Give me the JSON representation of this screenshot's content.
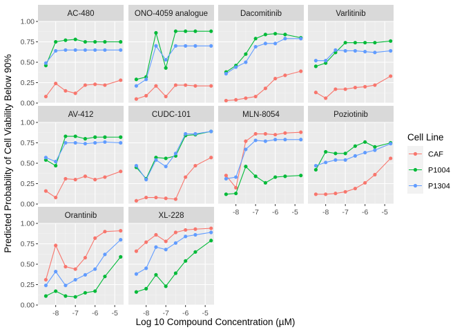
{
  "chart_data": {
    "type": "line",
    "xlabel": "Log 10 Compound Concentration (µM)",
    "ylabel": "Predicted Probability of Cell Viability Below 90%",
    "xlim": [
      -8.9,
      -4.55
    ],
    "ylim": [
      0,
      1
    ],
    "x_ticks": [
      -8,
      -7,
      -6,
      -5
    ],
    "x_tick_labels": [
      "-8",
      "-7",
      "-6",
      "-5"
    ],
    "y_ticks": [
      0,
      0.25,
      0.5,
      0.75,
      1
    ],
    "y_tick_labels": [
      "0.00",
      "0.25",
      "0.50",
      "0.75",
      "1.00"
    ],
    "x": [
      -8.5,
      -8.0,
      -7.5,
      -7.0,
      -6.5,
      -6.0,
      -5.5,
      -4.7
    ],
    "legend": {
      "title": "Cell Line",
      "position": "right",
      "entries": [
        "CAF",
        "P1004",
        "P1304"
      ]
    },
    "series_colors": {
      "CAF": "#F8766D",
      "P1004": "#00BA38",
      "P1304": "#619CFF"
    },
    "panels": [
      {
        "title": "AC-480",
        "series": [
          {
            "name": "CAF",
            "values": [
              0.08,
              0.24,
              0.15,
              0.12,
              0.22,
              0.23,
              0.22,
              0.28
            ]
          },
          {
            "name": "P1004",
            "values": [
              0.46,
              0.75,
              0.77,
              0.78,
              0.75,
              0.75,
              0.75,
              0.75
            ]
          },
          {
            "name": "P1304",
            "values": [
              0.49,
              0.64,
              0.65,
              0.65,
              0.65,
              0.65,
              0.65,
              0.65
            ]
          }
        ]
      },
      {
        "title": "ONO-4059 analogue",
        "series": [
          {
            "name": "CAF",
            "values": [
              0.05,
              0.09,
              0.21,
              0.08,
              0.22,
              0.22,
              0.21,
              0.21
            ]
          },
          {
            "name": "P1004",
            "values": [
              0.29,
              0.32,
              0.86,
              0.43,
              0.88,
              0.88,
              0.88,
              0.88
            ]
          },
          {
            "name": "P1304",
            "values": [
              0.21,
              0.29,
              0.7,
              0.53,
              0.7,
              0.7,
              0.7,
              0.7
            ]
          }
        ]
      },
      {
        "title": "Dacomitinib",
        "series": [
          {
            "name": "CAF",
            "values": [
              0.03,
              0.04,
              0.06,
              0.08,
              0.18,
              0.3,
              0.34,
              0.39
            ]
          },
          {
            "name": "P1004",
            "values": [
              0.38,
              0.46,
              0.6,
              0.79,
              0.84,
              0.85,
              0.84,
              0.8
            ]
          },
          {
            "name": "P1304",
            "values": [
              0.36,
              0.44,
              0.5,
              0.69,
              0.73,
              0.73,
              0.79,
              0.79
            ]
          }
        ]
      },
      {
        "title": "Varlitinib",
        "series": [
          {
            "name": "CAF",
            "values": [
              0.13,
              0.06,
              0.17,
              0.17,
              0.19,
              0.2,
              0.22,
              0.33
            ]
          },
          {
            "name": "P1004",
            "values": [
              0.45,
              0.49,
              0.62,
              0.74,
              0.74,
              0.74,
              0.74,
              0.76
            ]
          },
          {
            "name": "P1304",
            "values": [
              0.52,
              0.52,
              0.65,
              0.64,
              0.64,
              0.63,
              0.62,
              0.64
            ]
          }
        ]
      },
      {
        "title": "AV-412",
        "series": [
          {
            "name": "CAF",
            "values": [
              0.16,
              0.08,
              0.31,
              0.3,
              0.34,
              0.3,
              0.33,
              0.4
            ]
          },
          {
            "name": "P1004",
            "values": [
              0.54,
              0.47,
              0.83,
              0.83,
              0.8,
              0.82,
              0.82,
              0.82
            ]
          },
          {
            "name": "P1304",
            "values": [
              0.57,
              0.52,
              0.75,
              0.75,
              0.74,
              0.75,
              0.76,
              0.75
            ]
          }
        ]
      },
      {
        "title": "CUDC-101",
        "series": [
          {
            "name": "CAF",
            "values": [
              0.04,
              0.08,
              0.08,
              0.07,
              0.06,
              0.33,
              0.47,
              0.57
            ]
          },
          {
            "name": "P1004",
            "values": [
              0.45,
              0.31,
              0.57,
              0.56,
              0.59,
              0.84,
              0.85,
              0.89
            ]
          },
          {
            "name": "P1304",
            "values": [
              0.47,
              0.3,
              0.54,
              0.46,
              0.62,
              0.86,
              0.86,
              0.89
            ]
          }
        ]
      },
      {
        "title": "MLN-8054",
        "series": [
          {
            "name": "CAF",
            "values": [
              0.35,
              0.2,
              0.77,
              0.86,
              0.86,
              0.85,
              0.87,
              0.88
            ]
          },
          {
            "name": "P1004",
            "values": [
              0.12,
              0.13,
              0.46,
              0.34,
              0.26,
              0.33,
              0.34,
              0.35
            ]
          },
          {
            "name": "P1304",
            "values": [
              0.31,
              0.33,
              0.67,
              0.78,
              0.77,
              0.79,
              0.79,
              0.79
            ]
          }
        ]
      },
      {
        "title": "Poziotinib",
        "series": [
          {
            "name": "CAF",
            "values": [
              0.12,
              0.12,
              0.13,
              0.15,
              0.19,
              0.26,
              0.36,
              0.56
            ]
          },
          {
            "name": "P1004",
            "values": [
              0.42,
              0.64,
              0.62,
              0.62,
              0.71,
              0.76,
              0.7,
              0.75
            ]
          },
          {
            "name": "P1304",
            "values": [
              0.47,
              0.51,
              0.54,
              0.54,
              0.59,
              0.63,
              0.66,
              0.74
            ]
          }
        ]
      },
      {
        "title": "Orantinib",
        "series": [
          {
            "name": "CAF",
            "values": [
              0.31,
              0.73,
              0.47,
              0.44,
              0.58,
              0.82,
              0.9,
              0.91
            ]
          },
          {
            "name": "P1004",
            "values": [
              0.11,
              0.17,
              0.11,
              0.1,
              0.15,
              0.17,
              0.35,
              0.59
            ]
          },
          {
            "name": "P1304",
            "values": [
              0.24,
              0.41,
              0.24,
              0.31,
              0.37,
              0.44,
              0.62,
              0.8
            ]
          }
        ]
      },
      {
        "title": "XL-228",
        "series": [
          {
            "name": "CAF",
            "values": [
              0.66,
              0.77,
              0.86,
              0.78,
              0.89,
              0.92,
              0.93,
              0.94
            ]
          },
          {
            "name": "P1004",
            "values": [
              0.16,
              0.2,
              0.37,
              0.23,
              0.39,
              0.54,
              0.65,
              0.79
            ]
          },
          {
            "name": "P1304",
            "values": [
              0.38,
              0.45,
              0.71,
              0.68,
              0.76,
              0.84,
              0.86,
              0.89
            ]
          }
        ]
      }
    ]
  }
}
